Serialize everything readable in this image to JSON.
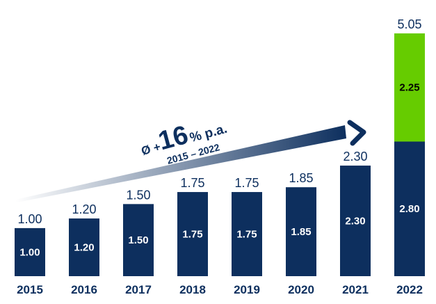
{
  "chart_data": {
    "type": "bar",
    "stacked": true,
    "categories": [
      "2015",
      "2016",
      "2017",
      "2018",
      "2019",
      "2020",
      "2021",
      "2022"
    ],
    "series": [
      {
        "values": [
          1.0,
          1.2,
          1.5,
          1.75,
          1.75,
          1.85,
          2.3,
          2.8
        ],
        "labels": [
          "1.00",
          "1.20",
          "1.50",
          "1.75",
          "1.75",
          "1.85",
          "2.30",
          "2.80"
        ],
        "color": "#0d2f5e",
        "label_color": "#ffffff"
      },
      {
        "values": [
          0,
          0,
          0,
          0,
          0,
          0,
          0,
          2.25
        ],
        "labels": [
          "",
          "",
          "",
          "",
          "",
          "",
          "",
          "2.25"
        ],
        "color": "#66cc00",
        "label_color": "#000000"
      }
    ],
    "totals": [
      "1.00",
      "1.20",
      "1.50",
      "1.75",
      "1.75",
      "1.85",
      "2.30",
      "5.05"
    ],
    "ylim": [
      0,
      5.05
    ],
    "grid": false,
    "legend": "none",
    "title": "",
    "xlabel": "",
    "ylabel": ""
  },
  "annotation": {
    "symbol": "Ø +",
    "number": "16",
    "suffix": "% p.a.",
    "period": "2015 – 2022"
  }
}
